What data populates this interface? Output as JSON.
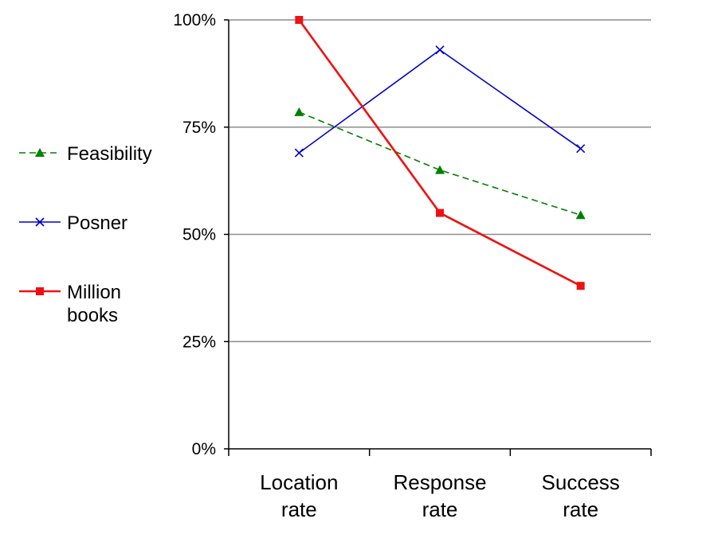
{
  "chart_data": {
    "type": "line",
    "title": "",
    "xlabel": "",
    "ylabel": "",
    "categories": [
      [
        "Location",
        "rate"
      ],
      [
        "Response",
        "rate"
      ],
      [
        "Success",
        "rate"
      ]
    ],
    "ylim": [
      0,
      100
    ],
    "yticks": [
      0,
      25,
      50,
      75,
      100
    ],
    "ytick_labels": [
      "0%",
      "25%",
      "50%",
      "75%",
      "100%"
    ],
    "grid": true,
    "legend_position": "left",
    "series": [
      {
        "name": "Feasibility",
        "values": [
          78.5,
          65,
          54.5
        ],
        "color": "#008000",
        "marker": "triangle",
        "dash": "dashed"
      },
      {
        "name": "Posner",
        "values": [
          69,
          93,
          70
        ],
        "color": "#0000CC",
        "marker": "x",
        "dash": "solid"
      },
      {
        "name": "Million books",
        "legend_lines": [
          "Million",
          "books"
        ],
        "values": [
          100,
          55,
          38
        ],
        "color": "#EE1111",
        "marker": "square",
        "dash": "solid"
      }
    ]
  }
}
